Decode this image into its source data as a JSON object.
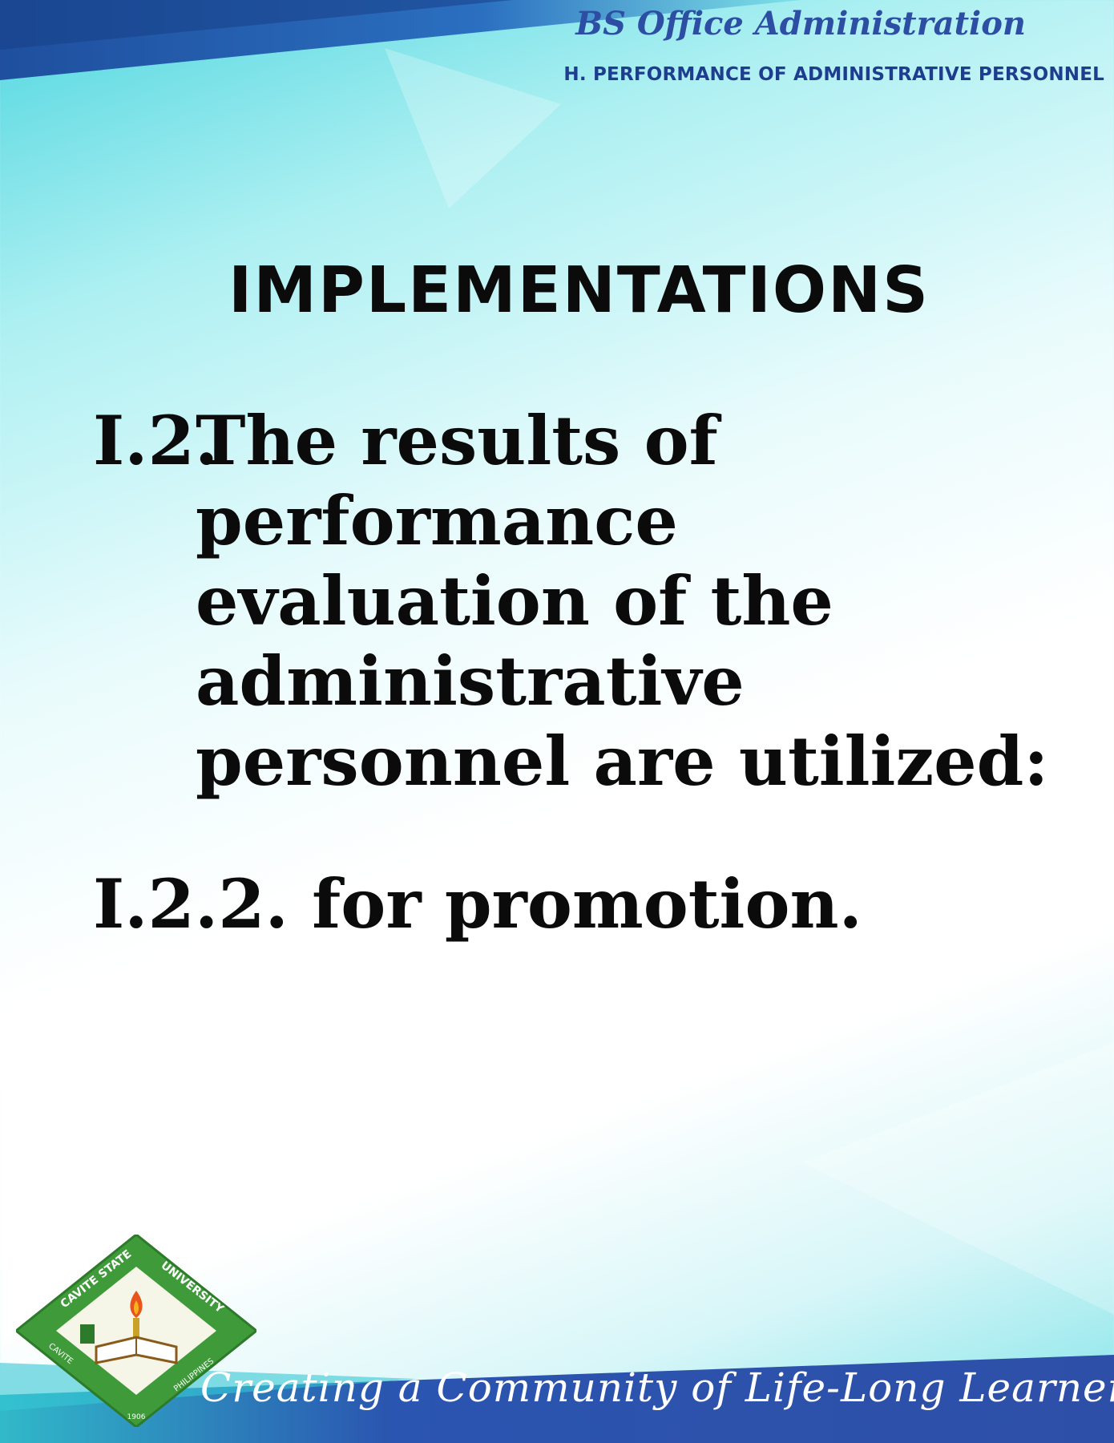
{
  "header": {
    "program_title": "BS Office Administration",
    "section_heading": "H. PERFORMANCE OF ADMINISTRATIVE PERSONNEL"
  },
  "main": {
    "title": "IMPLEMENTATIONS",
    "item_1": {
      "number": "I.2.",
      "lines": [
        "The results of",
        "performance",
        "evaluation of the",
        "administrative",
        "personnel are utilized:"
      ]
    },
    "item_2": "I.2.2. for promotion."
  },
  "footer": {
    "tagline": "Creating a Community of Life-Long Learners",
    "seal": {
      "top_text": "CAVITE STATE UNIVERSITY",
      "left_text": "CAVITE",
      "right_text": "PHILIPPINES",
      "year": "1906"
    }
  },
  "colors": {
    "accent_blue": "#2d4fa3",
    "heading_navy": "#1f3d8f",
    "seal_green": "#3f9b3a",
    "footer_band": "#2a55b0"
  }
}
